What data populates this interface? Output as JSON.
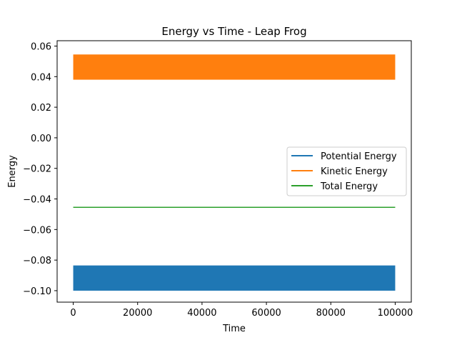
{
  "chart_data": {
    "type": "line",
    "title": "Energy vs Time - Leap Frog",
    "xlabel": "Time",
    "ylabel": "Energy",
    "xlim": [
      -5000,
      105000
    ],
    "ylim": [
      -0.1075,
      0.0635
    ],
    "xticks": [
      {
        "value": 0,
        "label": "0"
      },
      {
        "value": 20000,
        "label": "20000"
      },
      {
        "value": 40000,
        "label": "40000"
      },
      {
        "value": 60000,
        "label": "60000"
      },
      {
        "value": 80000,
        "label": "80000"
      },
      {
        "value": 100000,
        "label": "100000"
      }
    ],
    "yticks": [
      {
        "value": 0.06,
        "label": "0.06"
      },
      {
        "value": 0.04,
        "label": "0.04"
      },
      {
        "value": 0.02,
        "label": "0.02"
      },
      {
        "value": 0.0,
        "label": "0.00"
      },
      {
        "value": -0.02,
        "label": "−0.02"
      },
      {
        "value": -0.04,
        "label": "−0.04"
      },
      {
        "value": -0.06,
        "label": "−0.06"
      },
      {
        "value": -0.08,
        "label": "−0.08"
      },
      {
        "value": -0.1,
        "label": "−0.10"
      }
    ],
    "grid": false,
    "legend_position": "center-right",
    "series": [
      {
        "name": "Potential Energy",
        "color": "#1f77b4",
        "kind": "band",
        "x_range": [
          0,
          100000
        ],
        "y_min": -0.1,
        "y_max": -0.0835
      },
      {
        "name": "Kinetic Energy",
        "color": "#ff7f0e",
        "kind": "band",
        "x_range": [
          0,
          100000
        ],
        "y_min": 0.038,
        "y_max": 0.0545
      },
      {
        "name": "Total Energy",
        "color": "#2ca02c",
        "kind": "line",
        "x_range": [
          0,
          100000
        ],
        "y_value": -0.0455
      }
    ]
  }
}
